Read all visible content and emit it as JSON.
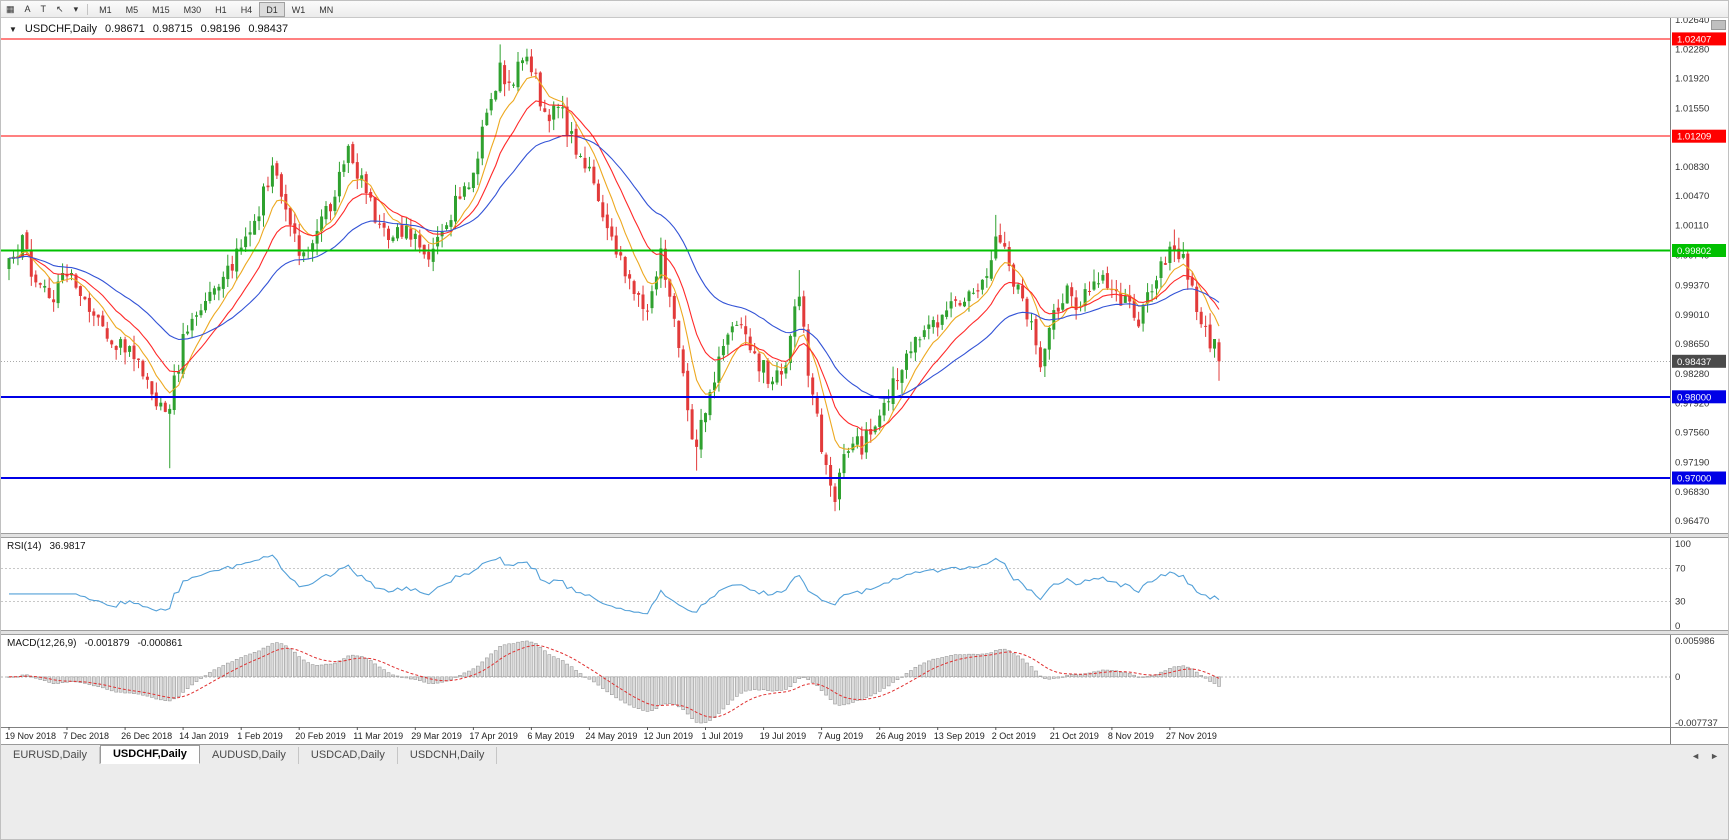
{
  "toolbar": {
    "tools": [
      {
        "name": "chart-grid-icon",
        "glyph": "▦"
      },
      {
        "name": "annotation-a-icon",
        "glyph": "A"
      },
      {
        "name": "text-tool-icon",
        "glyph": "T"
      },
      {
        "name": "cursor-tool-icon",
        "glyph": "↖"
      },
      {
        "name": "tool-dropdown-caret-icon",
        "glyph": "▾"
      }
    ],
    "timeframes": [
      "M1",
      "M5",
      "M15",
      "M30",
      "H1",
      "H4",
      "D1",
      "W1",
      "MN"
    ],
    "active_timeframe": "D1"
  },
  "chart": {
    "title": {
      "marker": "▼",
      "symbol": "USDCHF,Daily",
      "open": "0.98671",
      "high": "0.98715",
      "low": "0.98196",
      "close": "0.98437"
    },
    "scale": {
      "max": 1.02665,
      "min": 0.96322
    },
    "price_ticks": [
      "1.02640",
      "1.02280",
      "1.01920",
      "1.01550",
      "1.01190",
      "1.00830",
      "1.00470",
      "1.00110",
      "0.99740",
      "0.99370",
      "0.99010",
      "0.98650",
      "0.98280",
      "0.97920",
      "0.97560",
      "0.97190",
      "0.96830",
      "0.96470"
    ],
    "current_price": {
      "label": "0.98437",
      "value": 0.98437,
      "badge_color": "#4a4a4a"
    },
    "hlines": [
      {
        "label": "1.02407",
        "value": 1.02407,
        "color": "#ff0000",
        "width": 1
      },
      {
        "label": "1.01209",
        "value": 1.01209,
        "color": "#ff0000",
        "width": 1
      },
      {
        "label": "0.99802",
        "value": 0.99802,
        "color": "#00c000",
        "width": 2
      },
      {
        "label": "0.98000",
        "value": 0.98,
        "color": "#0000e6",
        "width": 2
      },
      {
        "label": "0.97000",
        "value": 0.97,
        "color": "#0000e6",
        "width": 2
      }
    ]
  },
  "chart_data": {
    "type": "candlestick",
    "symbol": "USDCHF",
    "timeframe": "Daily",
    "bars": 272,
    "first_bar_x": 8,
    "bar_spacing": 4.465,
    "up_color": "#2fa12f",
    "down_color": "#e23a3a",
    "anchors": [
      [
        0,
        0.996
      ],
      [
        3,
        0.9988
      ],
      [
        6,
        0.9945
      ],
      [
        10,
        0.9925
      ],
      [
        13,
        0.9958
      ],
      [
        16,
        0.993
      ],
      [
        20,
        0.9892
      ],
      [
        24,
        0.986
      ],
      [
        27,
        0.9868
      ],
      [
        30,
        0.9825
      ],
      [
        33,
        0.98
      ],
      [
        36,
        0.9788
      ],
      [
        39,
        0.9868
      ],
      [
        43,
        0.9915
      ],
      [
        47,
        0.9945
      ],
      [
        52,
        0.9982
      ],
      [
        56,
        1.003
      ],
      [
        59,
        1.0082
      ],
      [
        62,
        1.004
      ],
      [
        65,
        0.9978
      ],
      [
        68,
        0.9995
      ],
      [
        72,
        1.004
      ],
      [
        76,
        1.0108
      ],
      [
        79,
        1.0065
      ],
      [
        82,
        1.002
      ],
      [
        85,
        0.9988
      ],
      [
        88,
        1.0005
      ],
      [
        91,
        0.9992
      ],
      [
        94,
        0.998
      ],
      [
        98,
        1.0018
      ],
      [
        101,
        1.0045
      ],
      [
        104,
        1.0082
      ],
      [
        107,
        1.014
      ],
      [
        110,
        1.0212
      ],
      [
        112,
        1.018
      ],
      [
        114,
        1.0208
      ],
      [
        116,
        1.0218
      ],
      [
        118,
        1.0192
      ],
      [
        120,
        1.0145
      ],
      [
        123,
        1.0162
      ],
      [
        126,
        1.0118
      ],
      [
        130,
        1.0078
      ],
      [
        133,
        1.003
      ],
      [
        136,
        0.9982
      ],
      [
        139,
        0.9942
      ],
      [
        143,
        0.9898
      ],
      [
        146,
        0.9972
      ],
      [
        148,
        0.993
      ],
      [
        150,
        0.987
      ],
      [
        152,
        0.978
      ],
      [
        154,
        0.9732
      ],
      [
        156,
        0.9788
      ],
      [
        158,
        0.9825
      ],
      [
        161,
        0.9865
      ],
      [
        163,
        0.9895
      ],
      [
        165,
        0.987
      ],
      [
        167,
        0.9848
      ],
      [
        169,
        0.9835
      ],
      [
        171,
        0.9812
      ],
      [
        174,
        0.9845
      ],
      [
        176,
        0.9905
      ],
      [
        177,
        0.9928
      ],
      [
        179,
        0.9835
      ],
      [
        181,
        0.9768
      ],
      [
        183,
        0.9718
      ],
      [
        185,
        0.9682
      ],
      [
        187,
        0.9722
      ],
      [
        189,
        0.9752
      ],
      [
        191,
        0.9738
      ],
      [
        193,
        0.9758
      ],
      [
        195,
        0.9778
      ],
      [
        198,
        0.9812
      ],
      [
        201,
        0.9848
      ],
      [
        204,
        0.9878
      ],
      [
        208,
        0.9896
      ],
      [
        211,
        0.9928
      ],
      [
        213,
        0.9902
      ],
      [
        216,
        0.9928
      ],
      [
        219,
        0.9958
      ],
      [
        221,
        0.9992
      ],
      [
        223,
        0.9988
      ],
      [
        225,
        0.9945
      ],
      [
        228,
        0.9902
      ],
      [
        231,
        0.9848
      ],
      [
        234,
        0.9898
      ],
      [
        237,
        0.9928
      ],
      [
        239,
        0.9905
      ],
      [
        242,
        0.9932
      ],
      [
        245,
        0.9948
      ],
      [
        247,
        0.9942
      ],
      [
        250,
        0.9915
      ],
      [
        253,
        0.9888
      ],
      [
        256,
        0.9932
      ],
      [
        259,
        0.9968
      ],
      [
        261,
        0.9988
      ],
      [
        263,
        0.9972
      ],
      [
        265,
        0.993
      ],
      [
        267,
        0.9892
      ],
      [
        269,
        0.9868
      ],
      [
        271,
        0.98437
      ]
    ],
    "wick_events": [
      {
        "i": 36,
        "low": 0.9712
      },
      {
        "i": 110,
        "high": 1.0234
      },
      {
        "i": 116,
        "high": 1.0228
      },
      {
        "i": 146,
        "high": 0.9996
      },
      {
        "i": 154,
        "low": 0.9709
      },
      {
        "i": 177,
        "high": 0.9956
      },
      {
        "i": 185,
        "low": 0.9659
      },
      {
        "i": 221,
        "high": 1.0024
      },
      {
        "i": 261,
        "high": 1.0006
      },
      {
        "i": 271,
        "low": 0.98196
      }
    ],
    "last_bar": {
      "open": 0.98671,
      "high": 0.98715,
      "low": 0.98196,
      "close": 0.98437
    },
    "moving_averages": [
      {
        "name": "fast-ma",
        "period": 8,
        "color": "#eda921"
      },
      {
        "name": "mid-ma",
        "period": 16,
        "color": "#ff2a2a"
      },
      {
        "name": "slow-ma",
        "period": 36,
        "color": "#3353d6"
      }
    ],
    "x_ticks": [
      "19 Nov 2018",
      "7 Dec 2018",
      "26 Dec 2018",
      "14 Jan 2019",
      "1 Feb 2019",
      "20 Feb 2019",
      "11 Mar 2019",
      "29 Mar 2019",
      "17 Apr 2019",
      "6 May 2019",
      "24 May 2019",
      "12 Jun 2019",
      "1 Jul 2019",
      "19 Jul 2019",
      "7 Aug 2019",
      "26 Aug 2019",
      "13 Sep 2019",
      "2 Oct 2019",
      "21 Oct 2019",
      "8 Nov 2019",
      "27 Nov 2019"
    ],
    "x_tick_interval_bars": 13
  },
  "rsi": {
    "name": "RSI(14)",
    "value": "36.9817",
    "period": 14,
    "color": "#53a0d8",
    "levels": [
      70,
      30
    ],
    "axis_ticks": [
      {
        "label": "100",
        "v": 100
      },
      {
        "label": "70",
        "v": 70
      },
      {
        "label": "30",
        "v": 30
      },
      {
        "label": "0",
        "v": 0
      }
    ]
  },
  "macd": {
    "name": "MACD(12,26,9)",
    "value": "-0.001879",
    "signal_value": "-0.000861",
    "fast": 12,
    "slow": 26,
    "signal": 9,
    "hist_fill": "#dcdcdc",
    "hist_stroke": "#9a9a9a",
    "signal_color": "#e03030",
    "axis_max": 0.005986,
    "axis_min": -0.007737,
    "axis_ticks": [
      {
        "label": "0.005986",
        "v": 0.005986
      },
      {
        "label": "0",
        "v": 0
      },
      {
        "label": "-0.007737",
        "v": -0.007737
      }
    ]
  },
  "tabs": {
    "items": [
      {
        "label": "EURUSD,Daily",
        "active": false
      },
      {
        "label": "USDCHF,Daily",
        "active": true
      },
      {
        "label": "AUDUSD,Daily",
        "active": false
      },
      {
        "label": "USDCAD,Daily",
        "active": false
      },
      {
        "label": "USDCNH,Daily",
        "active": false
      }
    ],
    "nav_left": "◄",
    "nav_right": "►"
  }
}
